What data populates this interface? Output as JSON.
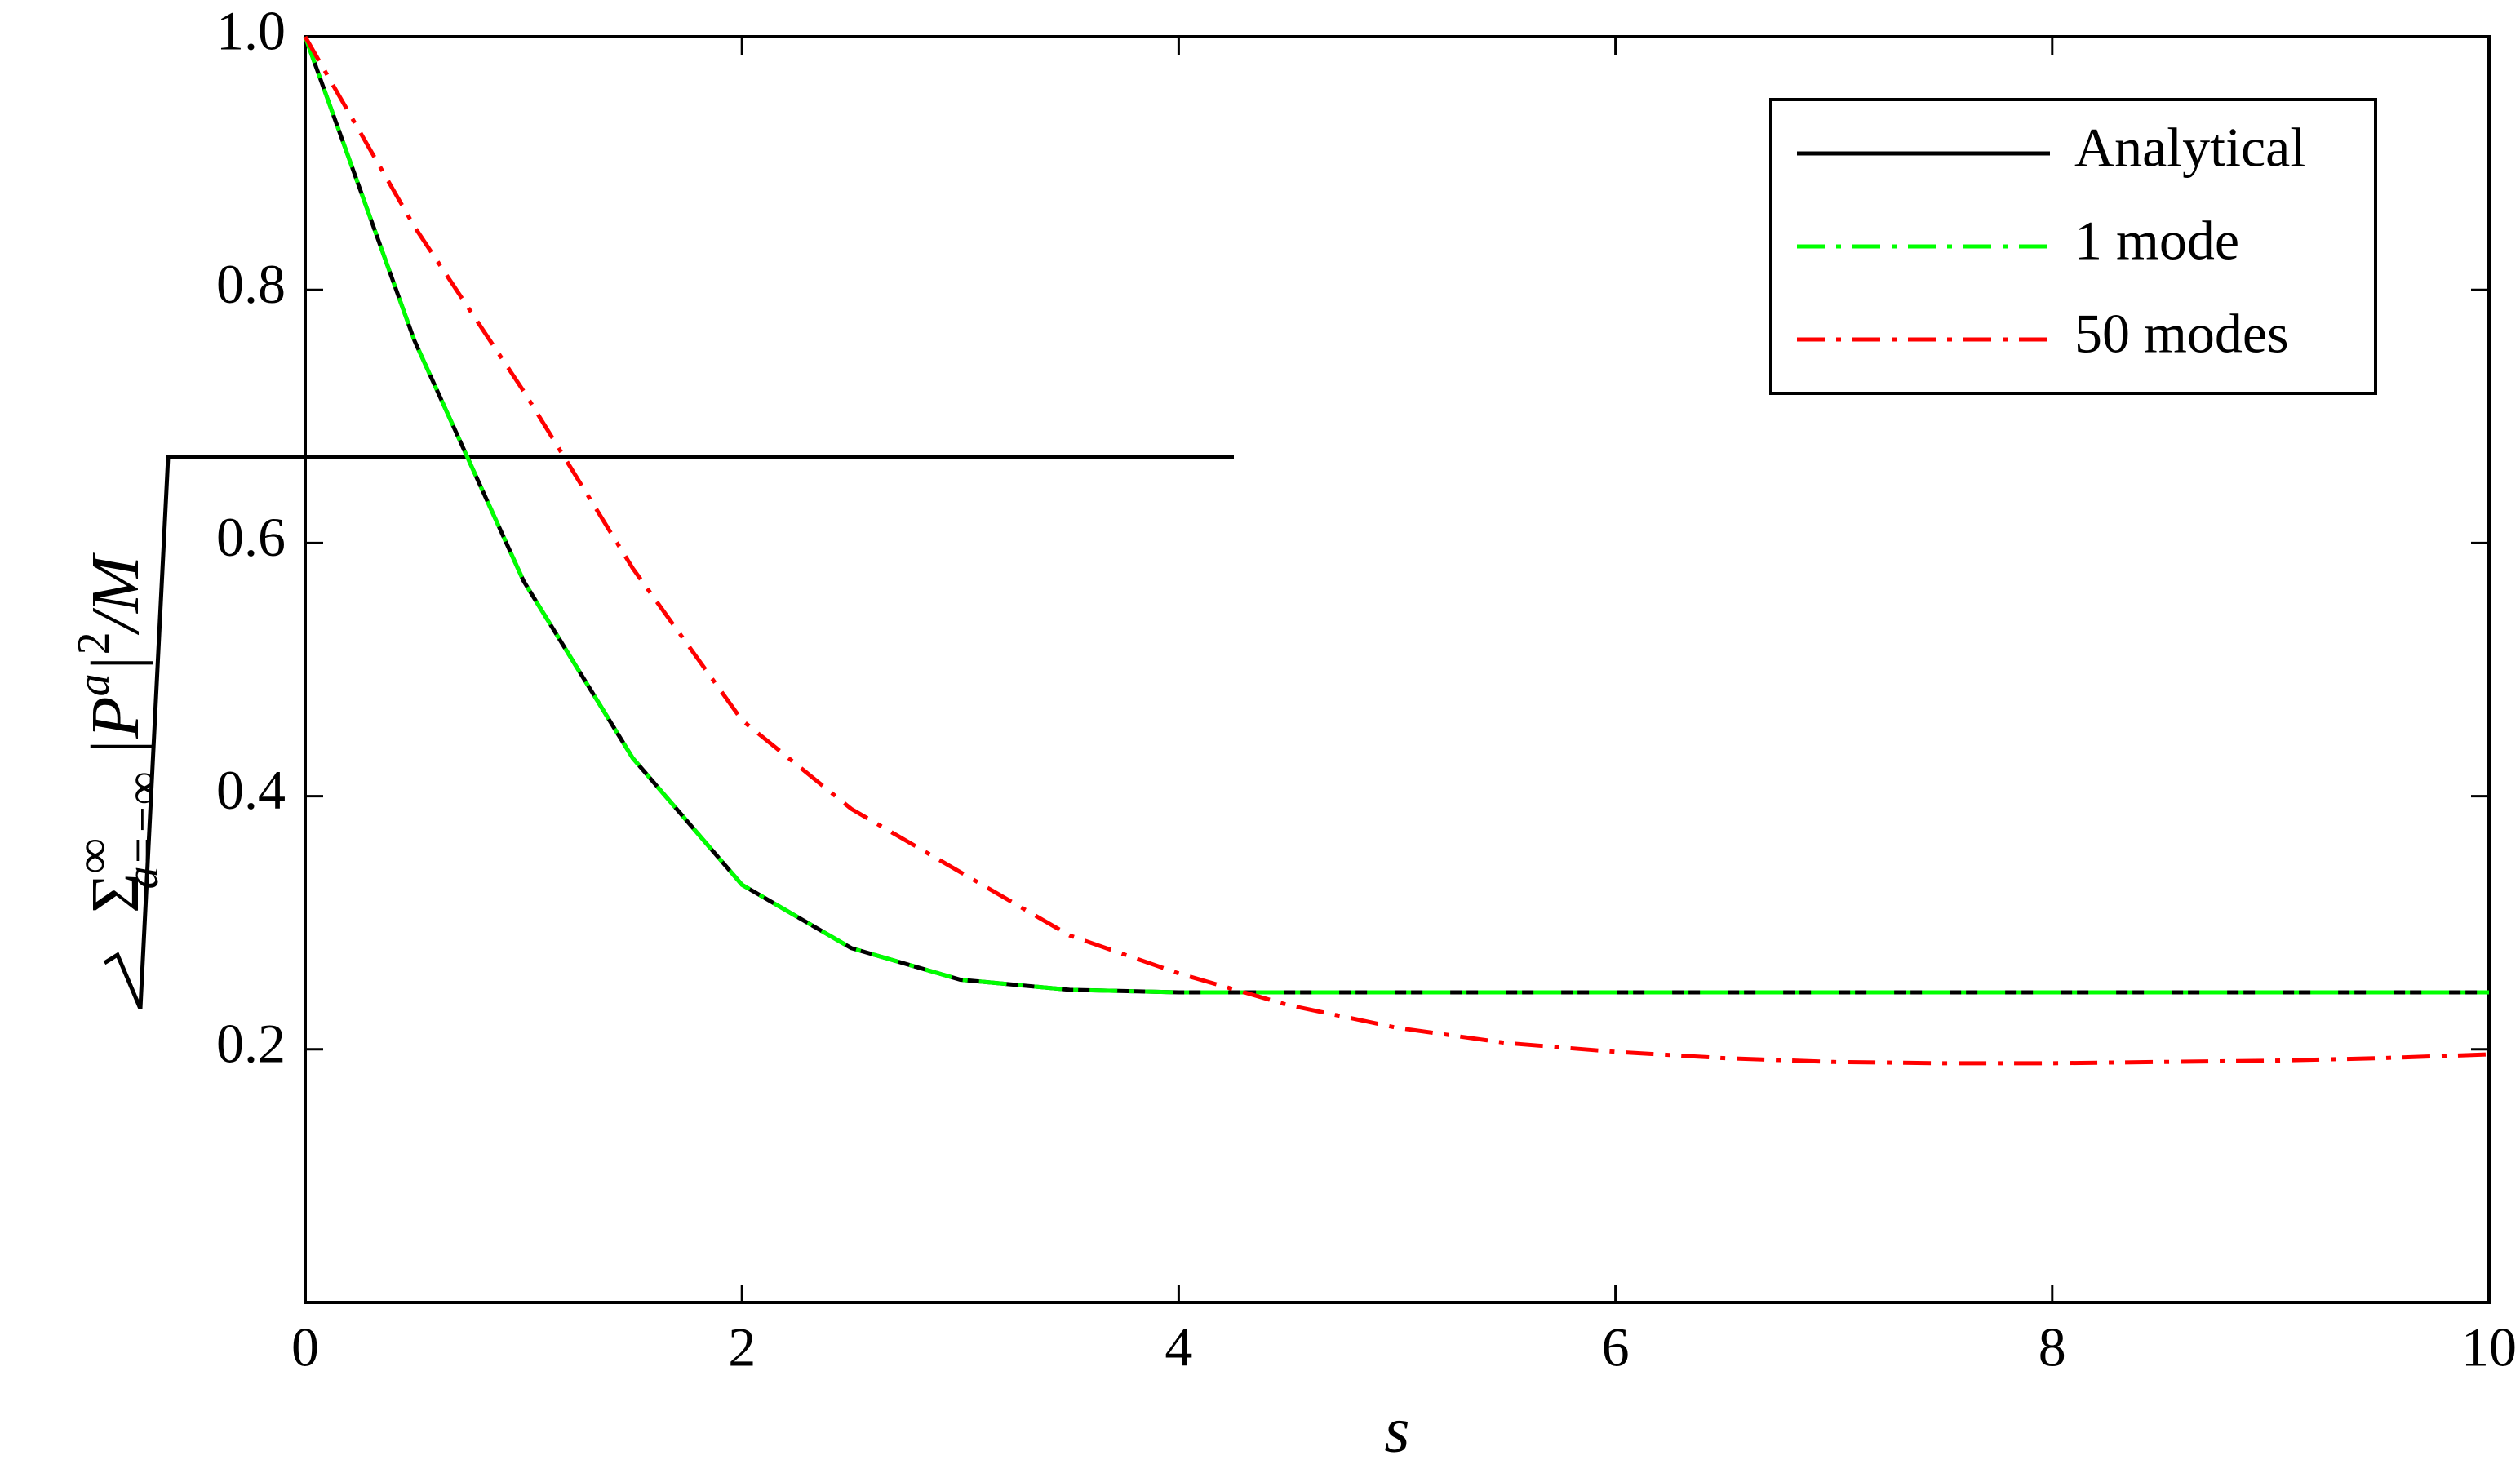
{
  "chart_data": {
    "type": "line",
    "xlabel": "s",
    "ylabel": [
      "Σ",
      "∞",
      "a=−∞",
      "|P",
      "a",
      "|",
      "2",
      "/M"
    ],
    "x": [
      0,
      0.5,
      1,
      1.5,
      2,
      2.5,
      3,
      3.5,
      4,
      4.5,
      5,
      5.5,
      6,
      6.5,
      7,
      7.5,
      8,
      8.5,
      9,
      9.5,
      10
    ],
    "series": [
      {
        "name": "Analytical",
        "color": "#000000",
        "dash": "solid",
        "values": [
          1,
          0.76,
          0.57,
          0.43,
          0.33,
          0.28,
          0.255,
          0.247,
          0.245,
          0.245,
          0.245,
          0.245,
          0.245,
          0.245,
          0.245,
          0.245,
          0.245,
          0.245,
          0.245,
          0.245,
          0.245
        ]
      },
      {
        "name": "1 mode",
        "color": "#00ff00",
        "dash": "dashdot",
        "values": [
          1,
          0.76,
          0.57,
          0.43,
          0.33,
          0.28,
          0.255,
          0.247,
          0.245,
          0.245,
          0.245,
          0.245,
          0.245,
          0.245,
          0.245,
          0.245,
          0.245,
          0.245,
          0.245,
          0.245,
          0.245
        ]
      },
      {
        "name": "50 modes",
        "color": "#ff0000",
        "dash": "dashdot",
        "values": [
          1,
          0.85,
          0.72,
          0.58,
          0.46,
          0.39,
          0.34,
          0.29,
          0.26,
          0.235,
          0.217,
          0.205,
          0.198,
          0.193,
          0.19,
          0.189,
          0.189,
          0.19,
          0.191,
          0.193,
          0.196
        ]
      }
    ],
    "xlim": [
      0,
      10
    ],
    "xticks": [
      0,
      2,
      4,
      6,
      8,
      10
    ],
    "ylim": [
      0,
      1
    ],
    "yticks": [
      0.2,
      0.4,
      0.6,
      0.8,
      {
        "value": 1,
        "label": "1.0"
      }
    ],
    "legend": "upper right",
    "grid": false
  }
}
